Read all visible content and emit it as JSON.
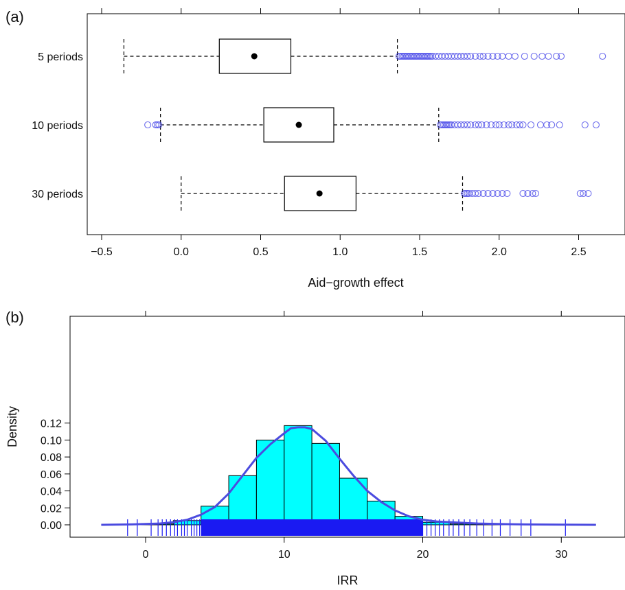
{
  "chart_data": [
    {
      "panel_label": "(a)",
      "type": "boxplot",
      "xlabel": "Aid−growth effect",
      "xlim": [
        -0.5,
        2.8
      ],
      "xticks": [
        -0.5,
        0.0,
        0.5,
        1.0,
        1.5,
        2.0,
        2.5
      ],
      "xtick_labels": [
        "−0.5",
        "0.0",
        "0.5",
        "1.0",
        "1.5",
        "2.0",
        "2.5"
      ],
      "box_color": "#000000",
      "outlier_color": "#4a4ae8",
      "groups": [
        {
          "label": "5 periods",
          "whisker_low": -0.36,
          "q1": 0.24,
          "median": 0.46,
          "q3": 0.69,
          "whisker_high": 1.36,
          "outliers": [
            1.37,
            1.38,
            1.39,
            1.4,
            1.41,
            1.42,
            1.43,
            1.44,
            1.45,
            1.46,
            1.47,
            1.48,
            1.49,
            1.5,
            1.51,
            1.52,
            1.53,
            1.54,
            1.55,
            1.56,
            1.57,
            1.58,
            1.6,
            1.62,
            1.64,
            1.66,
            1.68,
            1.7,
            1.72,
            1.74,
            1.76,
            1.78,
            1.8,
            1.82,
            1.85,
            1.88,
            1.9,
            1.93,
            1.96,
            1.99,
            2.02,
            2.06,
            2.1,
            2.16,
            2.22,
            2.27,
            2.31,
            2.36,
            2.39,
            2.65
          ]
        },
        {
          "label": "10 periods",
          "whisker_low": -0.13,
          "q1": 0.52,
          "median": 0.74,
          "q3": 0.96,
          "whisker_high": 1.62,
          "outliers": [
            -0.21,
            -0.16,
            -0.15,
            -0.14,
            1.63,
            1.64,
            1.65,
            1.66,
            1.67,
            1.68,
            1.69,
            1.7,
            1.72,
            1.74,
            1.76,
            1.78,
            1.8,
            1.82,
            1.85,
            1.87,
            1.89,
            1.92,
            1.95,
            1.98,
            2.0,
            2.03,
            2.06,
            2.08,
            2.11,
            2.13,
            2.15,
            2.2,
            2.26,
            2.3,
            2.33,
            2.38,
            2.54,
            2.61
          ]
        },
        {
          "label": "30 periods",
          "whisker_low": 0.0,
          "q1": 0.65,
          "median": 0.87,
          "q3": 1.1,
          "whisker_high": 1.77,
          "outliers": [
            1.78,
            1.79,
            1.8,
            1.81,
            1.83,
            1.85,
            1.87,
            1.9,
            1.93,
            1.96,
            1.99,
            2.02,
            2.05,
            2.15,
            2.18,
            2.21,
            2.23,
            2.51,
            2.53,
            2.56
          ]
        }
      ]
    },
    {
      "panel_label": "(b)",
      "type": "histogram",
      "xlabel": "IRR",
      "ylabel": "Density",
      "xlim": [
        -4,
        34
      ],
      "ylim": [
        -0.009,
        0.125
      ],
      "xticks": [
        0,
        10,
        20,
        30
      ],
      "xtick_labels": [
        "0",
        "10",
        "20",
        "30"
      ],
      "yticks": [
        0.0,
        0.02,
        0.04,
        0.06,
        0.08,
        0.1,
        0.12
      ],
      "ytick_labels": [
        "0.00",
        "0.02",
        "0.04",
        "0.06",
        "0.08",
        "0.10",
        "0.12"
      ],
      "bar_color": "#00ffff",
      "density_color": "#4b4bdf",
      "rug_color": "#1a1af2",
      "bins": [
        {
          "x0": -2,
          "x1": 0,
          "density": 0.0
        },
        {
          "x0": 0,
          "x1": 2,
          "density": 0.001
        },
        {
          "x0": 2,
          "x1": 4,
          "density": 0.005
        },
        {
          "x0": 4,
          "x1": 6,
          "density": 0.022
        },
        {
          "x0": 6,
          "x1": 8,
          "density": 0.058
        },
        {
          "x0": 8,
          "x1": 10,
          "density": 0.1
        },
        {
          "x0": 10,
          "x1": 12,
          "density": 0.117
        },
        {
          "x0": 12,
          "x1": 14,
          "density": 0.096
        },
        {
          "x0": 14,
          "x1": 16,
          "density": 0.055
        },
        {
          "x0": 16,
          "x1": 18,
          "density": 0.028
        },
        {
          "x0": 18,
          "x1": 20,
          "density": 0.01
        },
        {
          "x0": 20,
          "x1": 22,
          "density": 0.003
        },
        {
          "x0": 22,
          "x1": 24,
          "density": 0.001
        },
        {
          "x0": 24,
          "x1": 26,
          "density": 0.0005
        },
        {
          "x0": 26,
          "x1": 28,
          "density": 0.0003
        },
        {
          "x0": 28,
          "x1": 30,
          "density": 0.0001
        },
        {
          "x0": 30,
          "x1": 32,
          "density": 0.0001
        }
      ],
      "density_curve": {
        "x": [
          -3.2,
          -1,
          0,
          1,
          2,
          3,
          4,
          5,
          6,
          7,
          8,
          9,
          10,
          10.5,
          11,
          11.5,
          12,
          13,
          14,
          15,
          16,
          17,
          18,
          19,
          20,
          21,
          22,
          24,
          26,
          28,
          30,
          32.5
        ],
        "y": [
          0.0,
          0.0005,
          0.001,
          0.0015,
          0.003,
          0.006,
          0.012,
          0.021,
          0.037,
          0.058,
          0.079,
          0.095,
          0.108,
          0.114,
          0.115,
          0.115,
          0.113,
          0.099,
          0.078,
          0.058,
          0.04,
          0.027,
          0.017,
          0.01,
          0.006,
          0.004,
          0.003,
          0.0015,
          0.0008,
          0.0004,
          0.0002,
          0.0
        ]
      },
      "rug": [
        -1.3,
        -0.6,
        0.4,
        0.9,
        1.2,
        1.5,
        1.8,
        2.1,
        2.3,
        2.6,
        2.8,
        3.0,
        3.3,
        3.5,
        3.7,
        3.9,
        20.0,
        20.3,
        20.6,
        20.9,
        21.2,
        21.5,
        21.9,
        22.2,
        22.6,
        23.0,
        23.4,
        23.9,
        24.4,
        25.0,
        25.6,
        26.3,
        27.1,
        27.8,
        30.3
      ],
      "rug_dense_range": [
        4,
        20
      ]
    }
  ]
}
